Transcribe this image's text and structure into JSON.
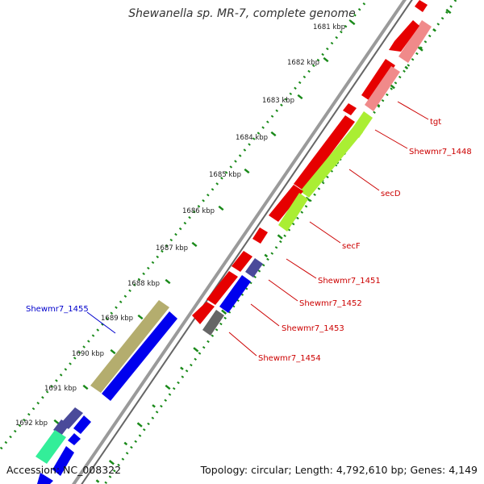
{
  "title": "Shewanella sp. MR-7, complete genome",
  "footer": {
    "accession": "Accession: NC_008322",
    "topology": "Topology: circular; Length: 4,792,610 bp; Genes: 4,149"
  },
  "kbp_labels": [
    "1681 kbp",
    "1682 kbp",
    "1683 kbp",
    "1684 kbp",
    "1685 kbp",
    "1686 kbp",
    "1687 kbp",
    "1688 kbp",
    "1689 kbp",
    "1690 kbp",
    "1691 kbp",
    "1692 kbp"
  ],
  "gene_labels": [
    {
      "text": "tgt",
      "color": "#cc0000"
    },
    {
      "text": "Shewmr7_1448",
      "color": "#cc0000"
    },
    {
      "text": "secD",
      "color": "#cc0000"
    },
    {
      "text": "secF",
      "color": "#cc0000"
    },
    {
      "text": "Shewmr7_1451",
      "color": "#cc0000"
    },
    {
      "text": "Shewmr7_1452",
      "color": "#cc0000"
    },
    {
      "text": "Shewmr7_1453",
      "color": "#cc0000"
    },
    {
      "text": "Shewmr7_1454",
      "color": "#cc0000"
    },
    {
      "text": "Shewmr7_1455",
      "color": "#0000cc"
    }
  ],
  "colors": {
    "backbone": "#888888",
    "ruler_dots": "#118811",
    "red": "#e60000",
    "pink": "#f08a8a",
    "lime": "#aaee33",
    "olive": "#b4ad6e",
    "blue": "#0000ee",
    "slate": "#4a4a9a",
    "gray": "#666666",
    "mint": "#33ee99"
  }
}
